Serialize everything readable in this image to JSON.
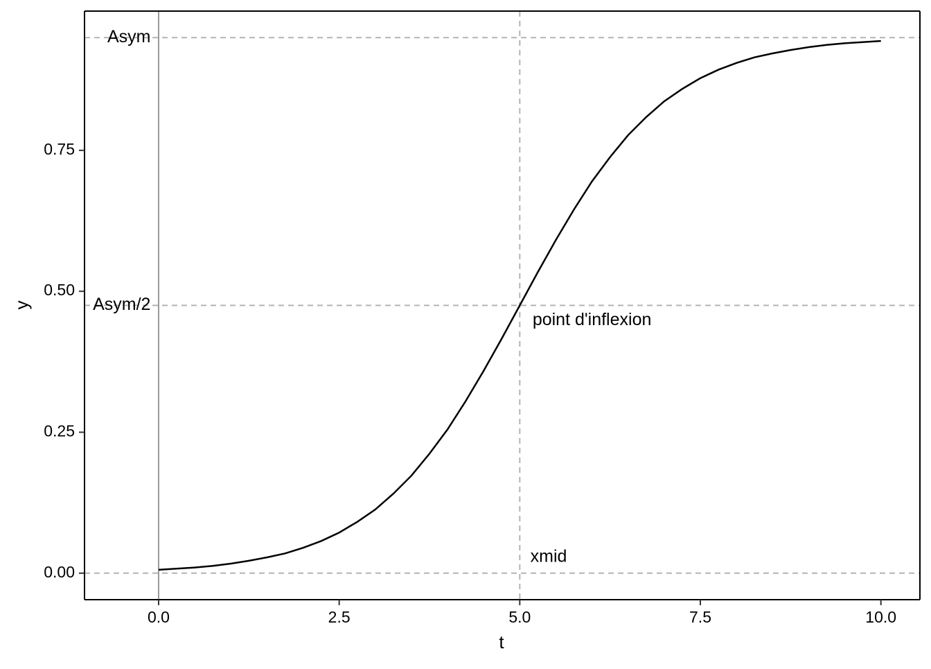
{
  "chart_data": {
    "type": "line",
    "x_label": "t",
    "y_label": "y",
    "x": [
      0,
      0.25,
      0.5,
      0.75,
      1,
      1.25,
      1.5,
      1.75,
      2,
      2.25,
      2.5,
      2.75,
      3,
      3.25,
      3.5,
      3.75,
      4,
      4.25,
      4.5,
      4.75,
      5,
      5.25,
      5.5,
      5.75,
      6,
      6.25,
      6.5,
      6.75,
      7,
      7.25,
      7.5,
      7.75,
      8,
      8.25,
      8.5,
      8.75,
      9,
      9.25,
      9.5,
      9.75,
      10
    ],
    "series": [
      {
        "color": "#000000",
        "values": [
          0.006,
          0.008,
          0.01,
          0.013,
          0.017,
          0.022,
          0.028,
          0.035,
          0.045,
          0.057,
          0.072,
          0.091,
          0.113,
          0.141,
          0.173,
          0.212,
          0.255,
          0.305,
          0.359,
          0.416,
          0.475,
          0.534,
          0.591,
          0.645,
          0.695,
          0.738,
          0.777,
          0.809,
          0.837,
          0.859,
          0.878,
          0.893,
          0.905,
          0.915,
          0.922,
          0.928,
          0.933,
          0.937,
          0.94,
          0.942,
          0.944
        ]
      }
    ],
    "xlim": [
      -1.026,
      10.54
    ],
    "ylim": [
      -0.047,
      0.997
    ],
    "xticks": [
      {
        "value": 0,
        "label": "0.0"
      },
      2.5,
      {
        "value": 5,
        "label": "5.0"
      },
      7.5,
      {
        "value": 10,
        "label": "10.0"
      }
    ],
    "yticks": [
      {
        "value": 0,
        "label": "0.00"
      },
      0.25,
      {
        "value": 0.5,
        "label": "0.50"
      },
      0.75
    ],
    "dashed_hlines": [
      0,
      0.475,
      0.95
    ],
    "dashed_vlines": [
      5
    ],
    "solid_vlines": [
      0
    ],
    "annotations": [
      {
        "text": "Asym",
        "x": -0.41,
        "y": 0.95
      },
      {
        "text": "Asym/2",
        "x": -0.51,
        "y": 0.475
      },
      {
        "text": "point d'inflexion",
        "x": 6.0,
        "y": 0.448
      },
      {
        "text": "xmid",
        "x": 5.4,
        "y": 0.028
      }
    ]
  }
}
